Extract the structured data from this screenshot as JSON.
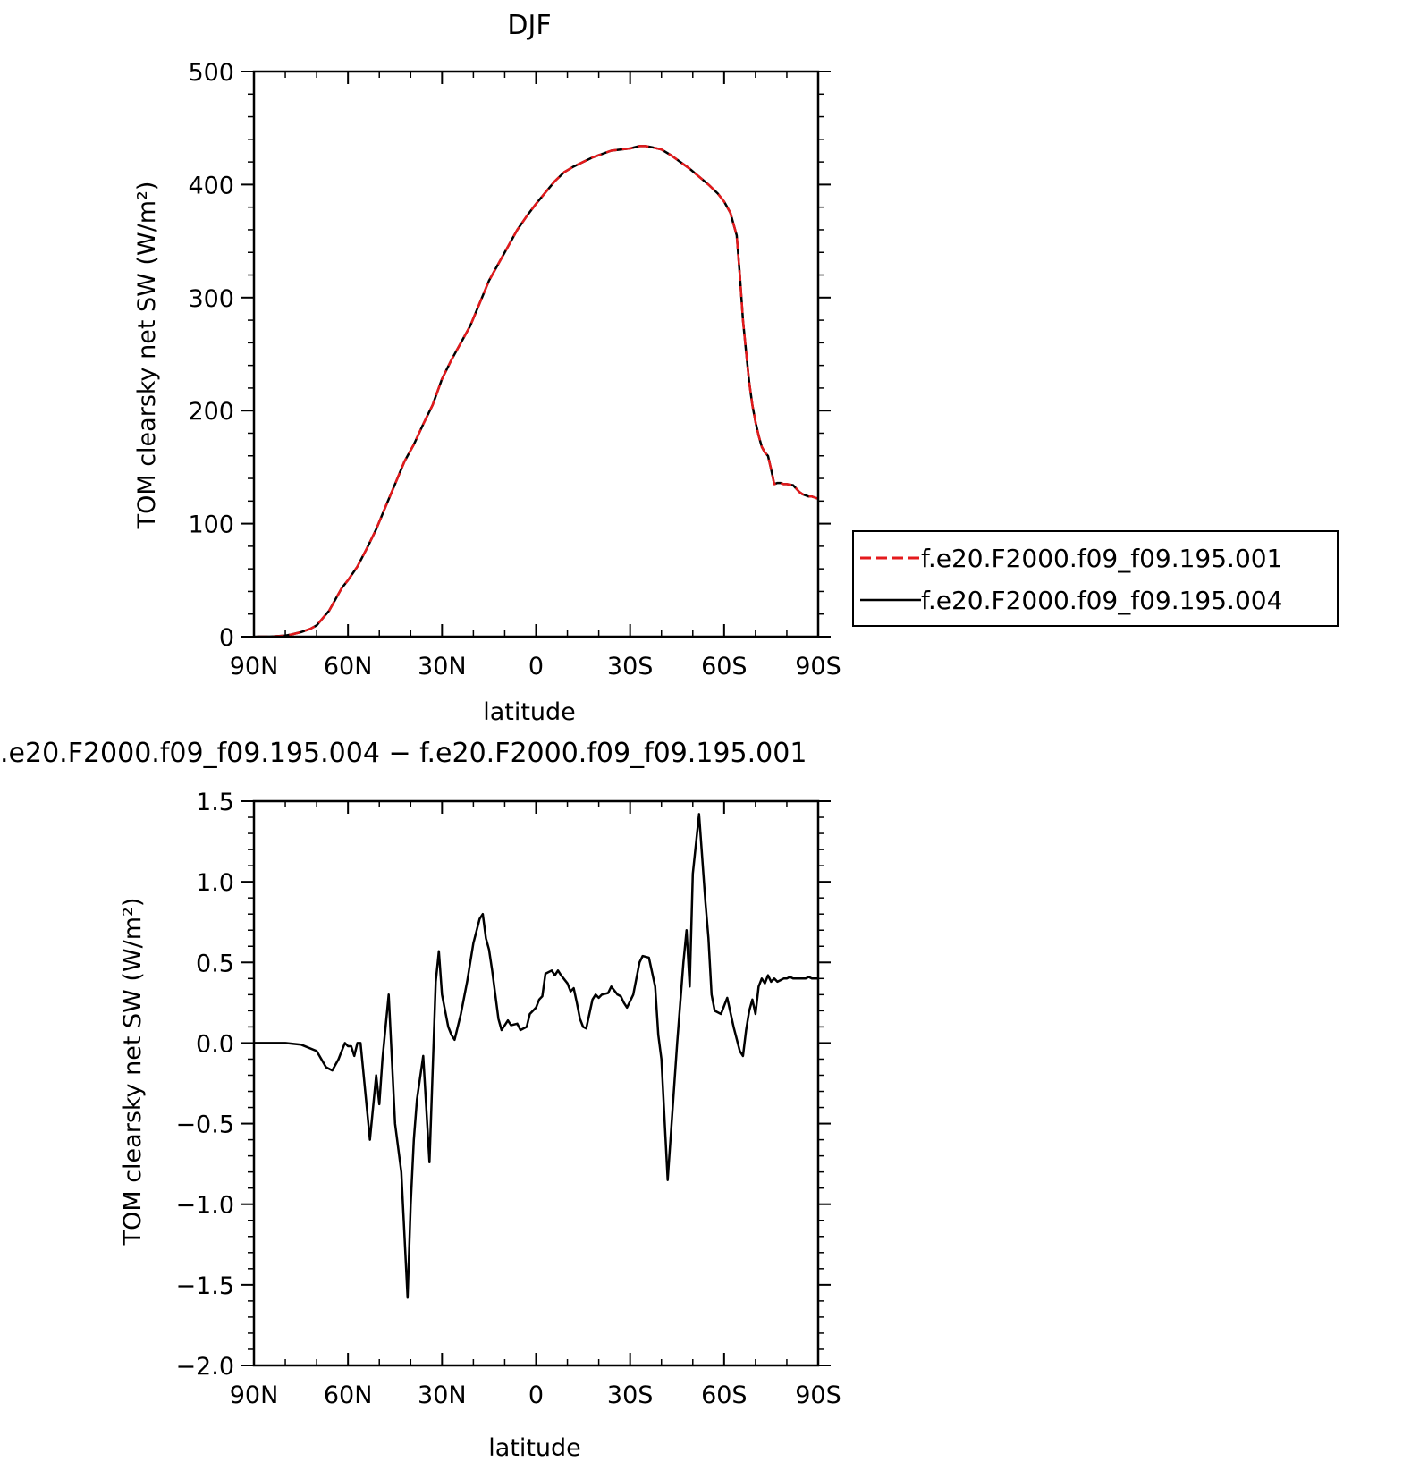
{
  "chart_data": [
    {
      "type": "line",
      "title": "DJF",
      "xlabel": "latitude",
      "ylabel": "TOM clearsky net SW (W/m²)",
      "x_ticks": [
        90,
        60,
        30,
        0,
        -30,
        -60,
        -90
      ],
      "x_tick_labels": [
        "90N",
        "60N",
        "30N",
        "0",
        "30S",
        "60S",
        "90S"
      ],
      "xlim": [
        90,
        -90
      ],
      "ylim": [
        0,
        500
      ],
      "y_ticks": [
        0,
        100,
        200,
        300,
        400,
        500
      ],
      "y_tick_labels": [
        "0",
        "100",
        "200",
        "300",
        "400",
        "500"
      ],
      "grid": false,
      "legend_position": "right",
      "series": [
        {
          "name": "f.e20.F2000.f09_f09.195.001",
          "color": "#e41a1c",
          "dash": "dashed",
          "x": [
            89,
            85,
            80,
            78,
            75,
            72,
            70,
            66,
            62,
            60,
            57,
            54,
            51,
            48,
            45,
            42,
            39,
            36,
            33,
            30,
            27,
            24,
            21,
            18,
            15,
            12,
            9,
            6,
            3,
            0,
            -3,
            -6,
            -9,
            -12,
            -15,
            -18,
            -21,
            -24,
            -27,
            -30,
            -33,
            -35,
            -37,
            -40,
            -43,
            -46,
            -49,
            -52,
            -55,
            -58,
            -60,
            -62,
            -64,
            -65,
            -66,
            -67,
            -68,
            -69,
            -70,
            -71,
            -72,
            -73,
            -74,
            -75,
            -76,
            -77,
            -78,
            -79,
            -80,
            -82,
            -84,
            -85,
            -86,
            -87,
            -88,
            -89,
            -90
          ],
          "y": [
            0,
            0,
            1,
            2,
            4,
            7,
            10,
            23,
            43,
            50,
            62,
            78,
            95,
            115,
            135,
            155,
            170,
            188,
            205,
            228,
            245,
            260,
            275,
            295,
            315,
            330,
            345,
            360,
            372,
            383,
            393,
            403,
            411,
            416,
            420,
            424,
            427,
            430,
            431,
            432,
            434,
            434,
            433,
            431,
            426,
            420,
            414,
            407,
            400,
            392,
            385,
            375,
            355,
            320,
            280,
            252,
            225,
            205,
            190,
            178,
            168,
            163,
            160,
            148,
            135,
            136,
            136,
            135,
            135,
            134,
            128,
            126,
            125,
            124,
            124,
            123,
            122
          ]
        },
        {
          "name": "f.e20.F2000.f09_f09.195.004",
          "color": "#000000",
          "dash": "solid",
          "x": [
            89,
            85,
            80,
            78,
            75,
            72,
            70,
            66,
            62,
            60,
            57,
            54,
            51,
            48,
            45,
            42,
            39,
            36,
            33,
            30,
            27,
            24,
            21,
            18,
            15,
            12,
            9,
            6,
            3,
            0,
            -3,
            -6,
            -9,
            -12,
            -15,
            -18,
            -21,
            -24,
            -27,
            -30,
            -33,
            -35,
            -37,
            -40,
            -43,
            -46,
            -49,
            -52,
            -55,
            -58,
            -60,
            -62,
            -64,
            -65,
            -66,
            -67,
            -68,
            -69,
            -70,
            -71,
            -72,
            -73,
            -74,
            -75,
            -76,
            -77,
            -78,
            -79,
            -80,
            -82,
            -84,
            -85,
            -86,
            -87,
            -88,
            -89,
            -90
          ],
          "y": [
            0,
            0,
            1,
            2,
            4,
            7,
            10,
            23,
            43,
            50,
            62,
            78,
            95,
            115,
            135,
            155,
            170,
            188,
            205,
            228,
            245,
            260,
            275,
            295,
            315,
            330,
            345,
            360,
            372,
            383,
            393,
            403,
            411,
            416,
            420,
            424,
            427,
            430,
            431,
            432,
            434,
            434,
            433,
            431,
            426,
            420,
            414,
            407,
            400,
            392,
            385,
            375,
            355,
            320,
            280,
            252,
            225,
            205,
            190,
            178,
            168,
            163,
            160,
            148,
            135,
            136,
            136,
            135,
            135,
            134,
            128,
            126,
            125,
            124,
            124,
            123,
            122
          ]
        }
      ]
    },
    {
      "type": "line",
      "title": ".e20.F2000.f09_f09.195.004 − f.e20.F2000.f09_f09.195.001",
      "xlabel": "latitude",
      "ylabel": "TOM clearsky net SW (W/m²)",
      "x_ticks": [
        90,
        60,
        30,
        0,
        -30,
        -60,
        -90
      ],
      "x_tick_labels": [
        "90N",
        "60N",
        "30N",
        "0",
        "30S",
        "60S",
        "90S"
      ],
      "xlim": [
        90,
        -90
      ],
      "ylim": [
        -2.0,
        1.5
      ],
      "y_ticks": [
        -2.0,
        -1.5,
        -1.0,
        -0.5,
        0.0,
        0.5,
        1.0,
        1.5
      ],
      "y_tick_labels": [
        "−2.0",
        "−1.5",
        "−1.0",
        "−0.5",
        "0.0",
        "0.5",
        "1.0",
        "1.5"
      ],
      "grid": false,
      "series": [
        {
          "color": "#000000",
          "x": [
            90,
            80,
            75,
            70,
            67,
            65,
            63,
            61,
            60,
            59,
            58,
            57,
            56,
            55,
            53,
            52,
            51,
            50,
            49,
            47,
            45,
            43,
            41,
            40,
            39,
            38,
            36,
            34,
            32,
            31,
            30,
            29,
            28,
            27,
            26,
            24,
            23,
            22,
            20,
            18,
            17,
            16,
            15,
            14,
            13,
            12,
            11,
            9,
            8,
            6,
            5,
            3,
            2,
            0,
            -1,
            -2,
            -3,
            -5,
            -6,
            -7,
            -8,
            -10,
            -11,
            -12,
            -13,
            -14,
            -15,
            -16,
            -18,
            -19,
            -20,
            -21,
            -23,
            -24,
            -26,
            -27,
            -28,
            -29,
            -31,
            -33,
            -34,
            -36,
            -38,
            -39,
            -40,
            -42,
            -45,
            -47,
            -48,
            -49,
            -50,
            -52,
            -54,
            -55,
            -56,
            -57,
            -59,
            -61,
            -63,
            -65,
            -66,
            -67,
            -68,
            -69,
            -70,
            -71,
            -72,
            -73,
            -74,
            -75,
            -76,
            -77,
            -78,
            -79,
            -80,
            -81,
            -82,
            -83,
            -84,
            -85,
            -86,
            -87,
            -88,
            -89,
            -90
          ],
          "y": [
            0.0,
            0.0,
            -0.01,
            -0.05,
            -0.15,
            -0.17,
            -0.1,
            0.0,
            -0.02,
            -0.02,
            -0.08,
            0.0,
            0.0,
            -0.2,
            -0.6,
            -0.4,
            -0.2,
            -0.38,
            -0.1,
            0.3,
            -0.5,
            -0.8,
            -1.58,
            -1.0,
            -0.6,
            -0.35,
            -0.08,
            -0.74,
            0.38,
            0.57,
            0.3,
            0.2,
            0.1,
            0.05,
            0.02,
            0.18,
            0.28,
            0.38,
            0.62,
            0.77,
            0.8,
            0.65,
            0.58,
            0.45,
            0.3,
            0.15,
            0.08,
            0.14,
            0.11,
            0.12,
            0.08,
            0.1,
            0.18,
            0.22,
            0.27,
            0.29,
            0.43,
            0.45,
            0.42,
            0.45,
            0.42,
            0.37,
            0.32,
            0.34,
            0.25,
            0.15,
            0.1,
            0.09,
            0.27,
            0.3,
            0.28,
            0.3,
            0.31,
            0.35,
            0.3,
            0.29,
            0.25,
            0.22,
            0.3,
            0.5,
            0.54,
            0.53,
            0.35,
            0.05,
            -0.1,
            -0.85,
            0.0,
            0.5,
            0.7,
            0.35,
            1.05,
            1.42,
            0.88,
            0.65,
            0.3,
            0.2,
            0.18,
            0.28,
            0.1,
            -0.05,
            -0.08,
            0.08,
            0.2,
            0.27,
            0.18,
            0.35,
            0.4,
            0.37,
            0.42,
            0.38,
            0.4,
            0.38,
            0.39,
            0.4,
            0.4,
            0.41,
            0.4,
            0.4,
            0.4,
            0.4,
            0.4,
            0.41,
            0.4,
            0.4,
            0.4
          ]
        }
      ]
    }
  ]
}
